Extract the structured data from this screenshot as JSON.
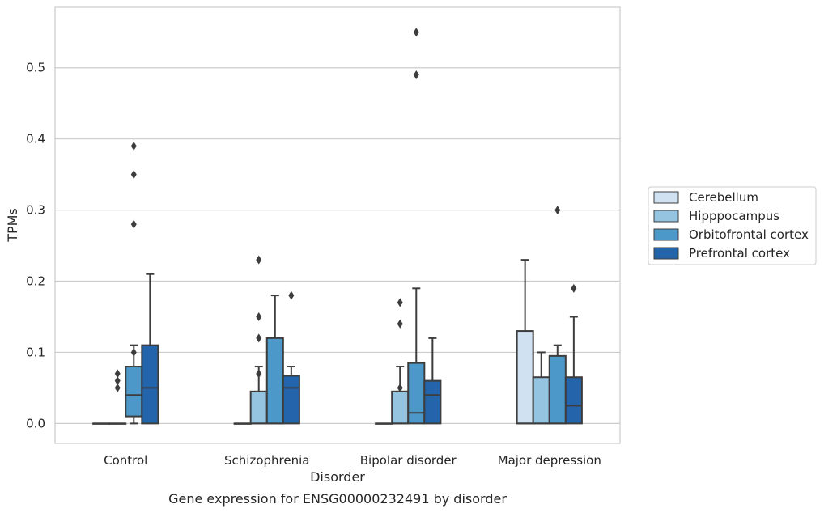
{
  "caption": "Gene expression for ENSG00000232491 by disorder",
  "chart_data": {
    "type": "box",
    "title": "",
    "xlabel": "Disorder",
    "ylabel": "TPMs",
    "categories": [
      "Control",
      "Schizophrenia",
      "Bipolar disorder",
      "Major depression"
    ],
    "ylim": [
      -0.028,
      0.585
    ],
    "yticks": [
      0.0,
      0.1,
      0.2,
      0.3,
      0.4,
      0.5
    ],
    "ytick_labels": [
      "0.0",
      "0.1",
      "0.2",
      "0.3",
      "0.4",
      "0.5"
    ],
    "grid": "horizontal",
    "legend_position": "right",
    "series": [
      {
        "name": "Cerebellum",
        "color": "#d0e1f2",
        "boxes": [
          {
            "whislo": 0.0,
            "q1": 0.0,
            "med": 0.0,
            "q3": 0.0,
            "whishi": 0.0,
            "fliers": []
          },
          {
            "whislo": 0.0,
            "q1": 0.0,
            "med": 0.0,
            "q3": 0.0,
            "whishi": 0.0,
            "fliers": []
          },
          {
            "whislo": 0.0,
            "q1": 0.0,
            "med": 0.0,
            "q3": 0.0,
            "whishi": 0.0,
            "fliers": []
          },
          {
            "whislo": 0.0,
            "q1": 0.0,
            "med": 0.0,
            "q3": 0.13,
            "whishi": 0.23,
            "fliers": []
          }
        ]
      },
      {
        "name": "Hipppocampus",
        "color": "#94c4df",
        "boxes": [
          {
            "whislo": 0.0,
            "q1": 0.0,
            "med": 0.0,
            "q3": 0.0,
            "whishi": 0.0,
            "fliers": [
              0.05,
              0.06,
              0.07
            ]
          },
          {
            "whislo": 0.0,
            "q1": 0.0,
            "med": 0.0,
            "q3": 0.045,
            "whishi": 0.08,
            "fliers": [
              0.07,
              0.12,
              0.15,
              0.23
            ]
          },
          {
            "whislo": 0.0,
            "q1": 0.0,
            "med": 0.0,
            "q3": 0.045,
            "whishi": 0.08,
            "fliers": [
              0.05,
              0.14,
              0.17
            ]
          },
          {
            "whislo": 0.0,
            "q1": 0.0,
            "med": 0.0,
            "q3": 0.065,
            "whishi": 0.1,
            "fliers": []
          }
        ]
      },
      {
        "name": "Orbitofrontal cortex",
        "color": "#4b98c9",
        "boxes": [
          {
            "whislo": 0.0,
            "q1": 0.01,
            "med": 0.04,
            "q3": 0.08,
            "whishi": 0.11,
            "fliers": [
              0.1,
              0.28,
              0.35,
              0.39
            ]
          },
          {
            "whislo": 0.0,
            "q1": 0.0,
            "med": 0.0,
            "q3": 0.12,
            "whishi": 0.18,
            "fliers": []
          },
          {
            "whislo": 0.0,
            "q1": 0.0,
            "med": 0.015,
            "q3": 0.085,
            "whishi": 0.19,
            "fliers": [
              0.49,
              0.55
            ]
          },
          {
            "whislo": 0.0,
            "q1": 0.0,
            "med": 0.0,
            "q3": 0.095,
            "whishi": 0.11,
            "fliers": [
              0.3
            ]
          }
        ]
      },
      {
        "name": "Prefrontal cortex",
        "color": "#2364aa",
        "boxes": [
          {
            "whislo": 0.0,
            "q1": 0.0,
            "med": 0.05,
            "q3": 0.11,
            "whishi": 0.21,
            "fliers": []
          },
          {
            "whislo": 0.0,
            "q1": 0.0,
            "med": 0.05,
            "q3": 0.067,
            "whishi": 0.08,
            "fliers": [
              0.18
            ]
          },
          {
            "whislo": 0.0,
            "q1": 0.0,
            "med": 0.04,
            "q3": 0.06,
            "whishi": 0.12,
            "fliers": []
          },
          {
            "whislo": 0.0,
            "q1": 0.0,
            "med": 0.025,
            "q3": 0.065,
            "whishi": 0.15,
            "fliers": [
              0.19
            ]
          }
        ]
      }
    ]
  }
}
